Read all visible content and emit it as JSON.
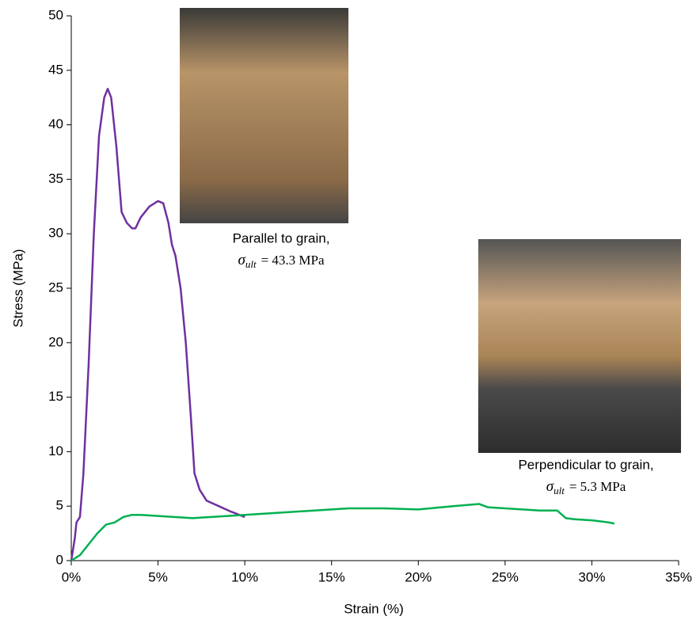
{
  "chart_data": {
    "type": "line",
    "xlabel": "Strain (%)",
    "ylabel": "Stress (MPa)",
    "xlim": [
      0,
      35
    ],
    "ylim": [
      0,
      50
    ],
    "xticks": [
      {
        "value": 0,
        "label": "0%"
      },
      {
        "value": 5,
        "label": "5%"
      },
      {
        "value": 10,
        "label": "10%"
      },
      {
        "value": 15,
        "label": "15%"
      },
      {
        "value": 20,
        "label": "20%"
      },
      {
        "value": 25,
        "label": "25%"
      },
      {
        "value": 30,
        "label": "30%"
      },
      {
        "value": 35,
        "label": "35%"
      }
    ],
    "yticks": [
      0,
      5,
      10,
      15,
      20,
      25,
      30,
      35,
      40,
      45,
      50
    ],
    "series": [
      {
        "color": "#7030a0",
        "x": [
          0,
          0.2,
          0.3,
          0.5,
          0.7,
          1.0,
          1.3,
          1.6,
          1.9,
          2.1,
          2.3,
          2.6,
          2.9,
          3.2,
          3.5,
          3.7,
          4.0,
          4.5,
          5.0,
          5.3,
          5.6,
          5.8,
          6.0,
          6.3,
          6.6,
          6.9,
          7.1,
          7.4,
          7.8,
          8.5,
          9.2,
          10.0
        ],
        "values": [
          0,
          2,
          3.5,
          4,
          8,
          18,
          30,
          39,
          42.5,
          43.3,
          42.5,
          38,
          32,
          31,
          30.5,
          30.5,
          31.5,
          32.5,
          33,
          32.8,
          31,
          29,
          28,
          25,
          20,
          13,
          8,
          6.5,
          5.5,
          5,
          4.5,
          4
        ]
      },
      {
        "color": "#00b050",
        "x": [
          0,
          0.5,
          1,
          1.5,
          2,
          2.5,
          3,
          3.5,
          4,
          5,
          6,
          7,
          8,
          9,
          10,
          12,
          14,
          16,
          18,
          20,
          22,
          23.5,
          24,
          25,
          26,
          27,
          28,
          28.5,
          29,
          30,
          31,
          31.3
        ],
        "values": [
          0,
          0.5,
          1.5,
          2.5,
          3.3,
          3.5,
          4,
          4.2,
          4.2,
          4.1,
          4.0,
          3.9,
          4.0,
          4.1,
          4.2,
          4.4,
          4.6,
          4.8,
          4.8,
          4.7,
          5.0,
          5.2,
          4.9,
          4.8,
          4.7,
          4.6,
          4.6,
          3.9,
          3.8,
          3.7,
          3.5,
          3.4
        ]
      }
    ],
    "annotations": [
      {
        "text": "Parallel to grain,",
        "symbol": "σ",
        "subscript": "ult",
        "value_text": "= 43.3 MPa"
      },
      {
        "text": "Perpendicular to grain,",
        "symbol": "σ",
        "subscript": "ult",
        "value_text": "= 5.3 MPa"
      }
    ]
  }
}
